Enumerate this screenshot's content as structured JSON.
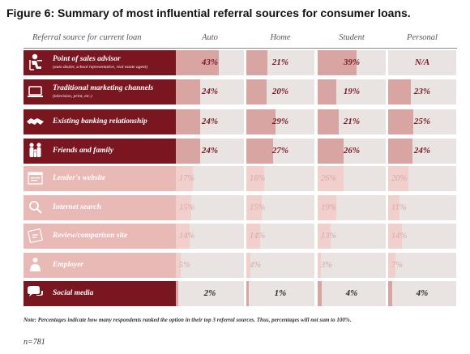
{
  "title": "Figure 6: Summary of most influential referral sources for consumer loans.",
  "columns": {
    "source": "Referral source for current loan",
    "auto": "Auto",
    "home": "Home",
    "student": "Student",
    "personal": "Personal"
  },
  "colors": {
    "dark_red": "#7a1620",
    "bar_strong": "#d9a5a3",
    "bar_faded": "#f0cfcc",
    "source_faded": "#e9b9b6",
    "cell_bg": "#e9e4e1"
  },
  "chart_data": {
    "type": "table",
    "title": "Figure 6: Summary of most influential referral sources for consumer loans.",
    "columns": [
      "Auto",
      "Home",
      "Student",
      "Personal"
    ],
    "value_unit": "%",
    "rows": [
      {
        "label": "Point of sales advisor",
        "sublabel": "(auto dealer, school representative, real estate agent)",
        "icon": "seated-person-icon",
        "style": "strong",
        "values": [
          43,
          21,
          39,
          null
        ],
        "display": [
          "43%",
          "21%",
          "39%",
          "N/A"
        ]
      },
      {
        "label": "Traditional marketing channels",
        "sublabel": "(television, print, etc.)",
        "icon": "laptop-icon",
        "style": "strong",
        "values": [
          24,
          20,
          19,
          23
        ],
        "display": [
          "24%",
          "20%",
          "19%",
          "23%"
        ]
      },
      {
        "label": "Existing banking relationship",
        "sublabel": "",
        "icon": "handshake-icon",
        "style": "strong",
        "values": [
          24,
          29,
          21,
          25
        ],
        "display": [
          "24%",
          "29%",
          "21%",
          "25%"
        ]
      },
      {
        "label": "Friends and family",
        "sublabel": "",
        "icon": "family-icon",
        "style": "strong",
        "values": [
          24,
          27,
          26,
          24
        ],
        "display": [
          "24%",
          "27%",
          "26%",
          "24%"
        ]
      },
      {
        "label": "Lender's website",
        "sublabel": "",
        "icon": "browser-window-icon",
        "style": "faded",
        "values": [
          17,
          18,
          26,
          20
        ],
        "display": [
          "17%",
          "18%",
          "26%",
          "20%"
        ]
      },
      {
        "label": "Internet search",
        "sublabel": "",
        "icon": "magnifier-icon",
        "style": "faded",
        "values": [
          15,
          15,
          19,
          11
        ],
        "display": [
          "15%",
          "15%",
          "19%",
          "11%"
        ]
      },
      {
        "label": "Review/comparison site",
        "sublabel": "",
        "icon": "review-site-icon",
        "style": "faded",
        "values": [
          14,
          14,
          13,
          14
        ],
        "display": [
          "14%",
          "14%",
          "13%",
          "14%"
        ]
      },
      {
        "label": "Employer",
        "sublabel": "",
        "icon": "employee-icon",
        "style": "faded",
        "values": [
          5,
          4,
          3,
          7
        ],
        "display": [
          "5%",
          "4%",
          "3%",
          "7%"
        ]
      },
      {
        "label": "Social media",
        "sublabel": "",
        "icon": "chat-bubbles-icon",
        "style": "social",
        "values": [
          2,
          1,
          4,
          4
        ],
        "display": [
          "2%",
          "1%",
          "4%",
          "4%"
        ]
      }
    ]
  },
  "note": "Note: Percentages indicate how many respondents ranked the option in their top 3 referral sources. Thus, percentages will not sum to 100%.",
  "sample": "n=781"
}
